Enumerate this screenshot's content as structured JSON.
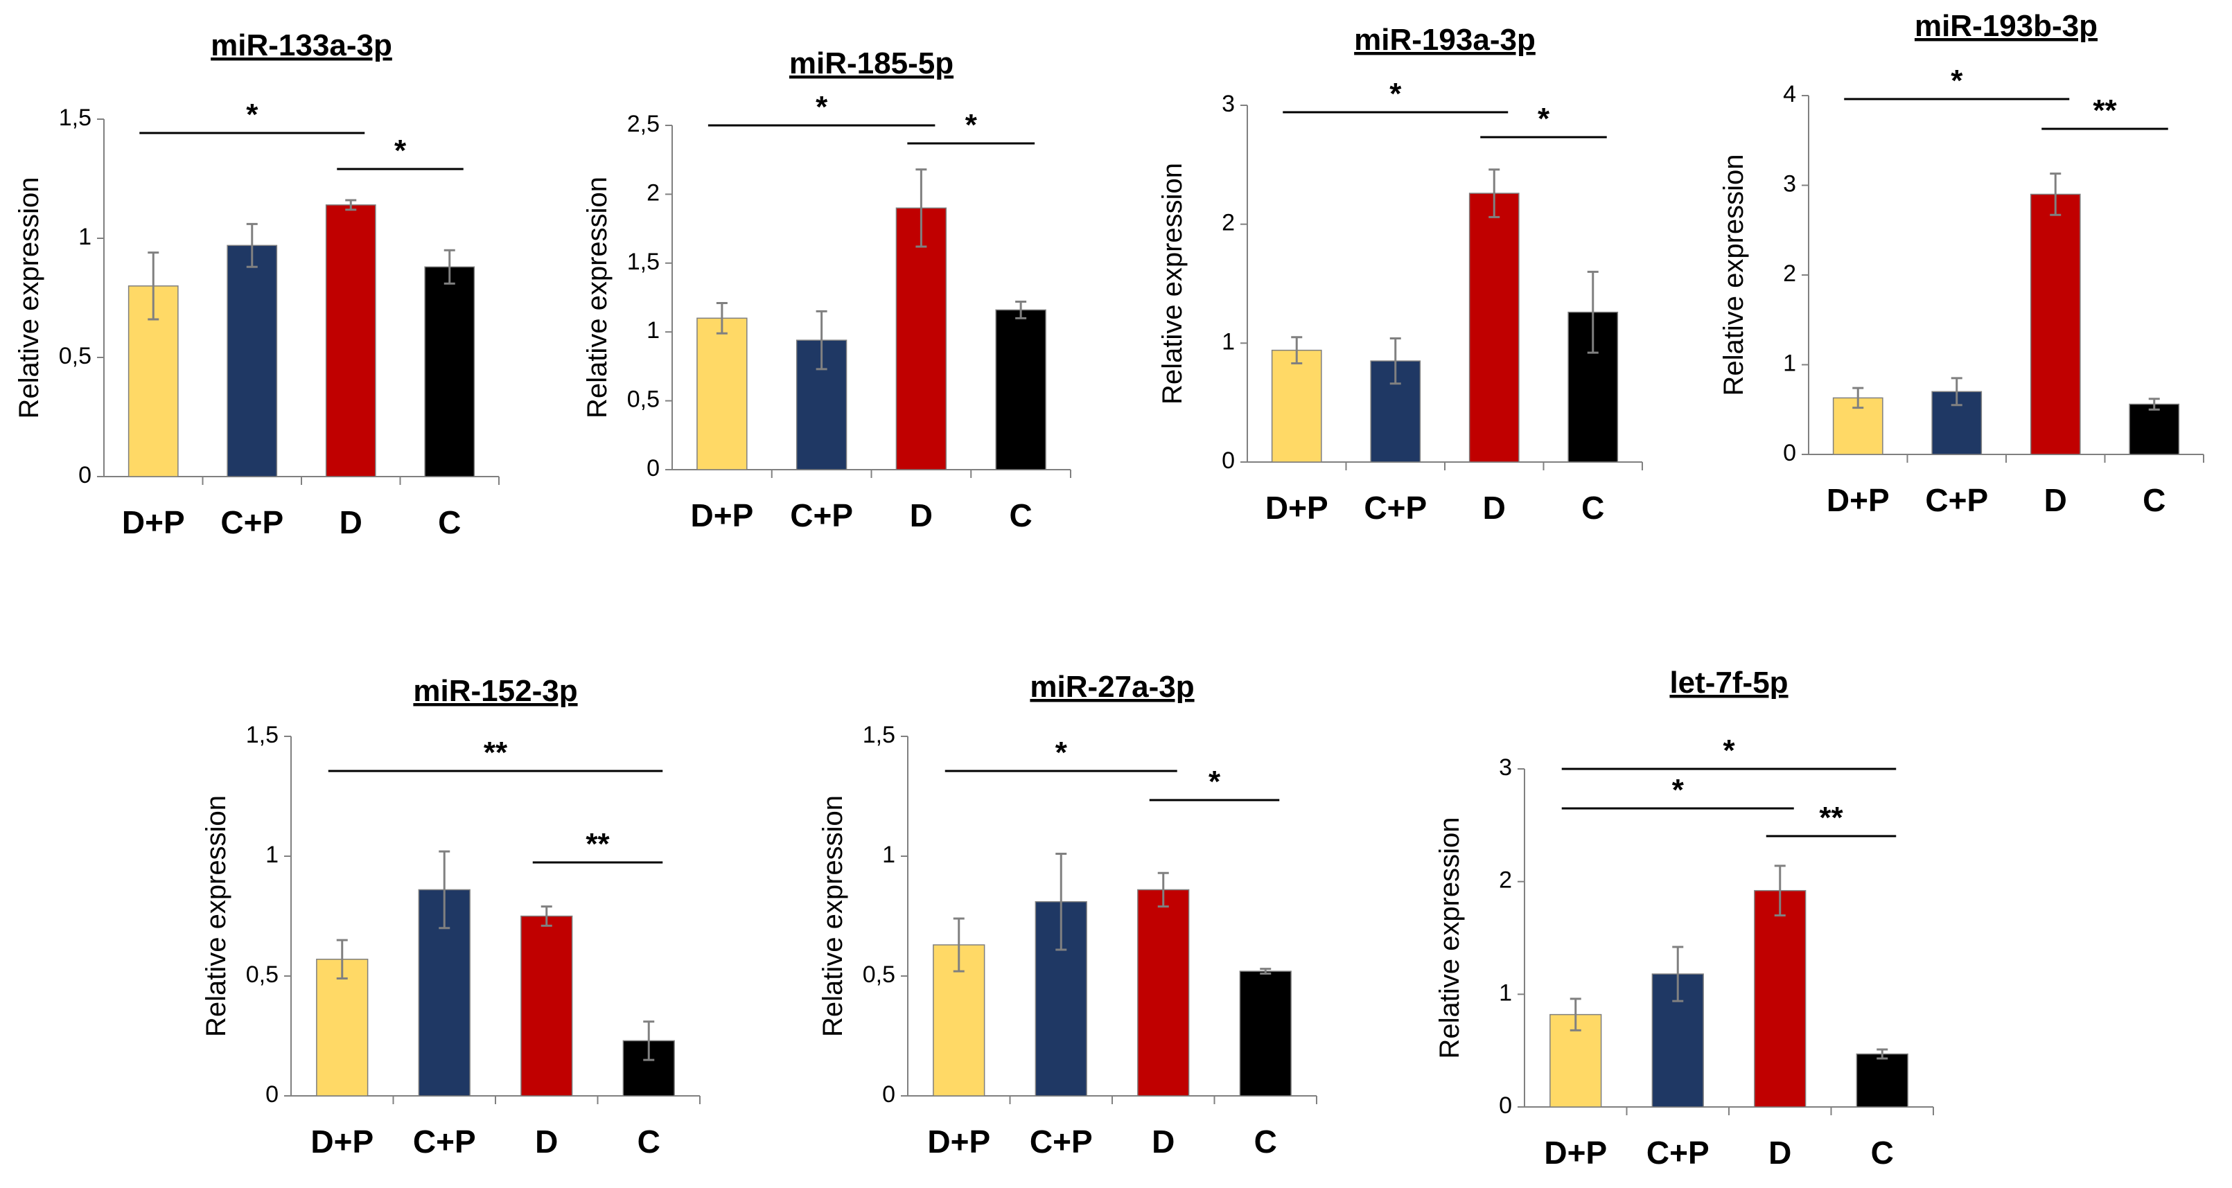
{
  "chart_data": [
    {
      "type": "bar",
      "title": "miR-133a-3p",
      "ylabel": "Relative expression",
      "xlabel": "",
      "ylim": [
        0,
        1.5
      ],
      "yticks": [
        "0",
        "0,5",
        "1",
        "1,5"
      ],
      "categories": [
        "D+P",
        "C+P",
        "D",
        "C"
      ],
      "values": [
        0.8,
        0.97,
        1.14,
        0.88
      ],
      "errors": [
        0.14,
        0.09,
        0.02,
        0.07
      ],
      "significance": [
        {
          "from": 0,
          "to": 2,
          "label": "*"
        },
        {
          "from": 2,
          "to": 3,
          "label": "*"
        }
      ]
    },
    {
      "type": "bar",
      "title": "miR-185-5p",
      "ylabel": "Relative expression",
      "xlabel": "",
      "ylim": [
        0,
        2.5
      ],
      "yticks": [
        "0",
        "0,5",
        "1",
        "1,5",
        "2",
        "2,5"
      ],
      "categories": [
        "D+P",
        "C+P",
        "D",
        "C"
      ],
      "values": [
        1.1,
        0.94,
        1.9,
        1.16
      ],
      "errors": [
        0.11,
        0.21,
        0.28,
        0.06
      ],
      "significance": [
        {
          "from": 0,
          "to": 2,
          "label": "*"
        },
        {
          "from": 2,
          "to": 3,
          "label": "*"
        }
      ]
    },
    {
      "type": "bar",
      "title": "miR-193a-3p",
      "ylabel": "Relative expression",
      "xlabel": "",
      "ylim": [
        0,
        3
      ],
      "yticks": [
        "0",
        "1",
        "2",
        "3"
      ],
      "categories": [
        "D+P",
        "C+P",
        "D",
        "C"
      ],
      "values": [
        0.94,
        0.85,
        2.26,
        1.26
      ],
      "errors": [
        0.11,
        0.19,
        0.2,
        0.34
      ],
      "significance": [
        {
          "from": 0,
          "to": 2,
          "label": "*"
        },
        {
          "from": 2,
          "to": 3,
          "label": "*"
        }
      ]
    },
    {
      "type": "bar",
      "title": "miR-193b-3p",
      "ylabel": "Relative expression",
      "xlabel": "",
      "ylim": [
        0,
        4
      ],
      "yticks": [
        "0",
        "1",
        "2",
        "3",
        "4"
      ],
      "categories": [
        "D+P",
        "C+P",
        "D",
        "C"
      ],
      "values": [
        0.63,
        0.7,
        2.9,
        0.56
      ],
      "errors": [
        0.11,
        0.15,
        0.23,
        0.06
      ],
      "significance": [
        {
          "from": 0,
          "to": 2,
          "label": "*"
        },
        {
          "from": 2,
          "to": 3,
          "label": "**"
        }
      ]
    },
    {
      "type": "bar",
      "title": "miR-152-3p",
      "ylabel": "Relative expression",
      "xlabel": "",
      "ylim": [
        0,
        1.5
      ],
      "yticks": [
        "0",
        "0,5",
        "1",
        "1,5"
      ],
      "categories": [
        "D+P",
        "C+P",
        "D",
        "C"
      ],
      "values": [
        0.57,
        0.86,
        0.75,
        0.23
      ],
      "errors": [
        0.08,
        0.16,
        0.04,
        0.08
      ],
      "significance": [
        {
          "from": 0,
          "to": 3,
          "label": "**"
        },
        {
          "from": 2,
          "to": 3,
          "label": "**"
        }
      ]
    },
    {
      "type": "bar",
      "title": "miR-27a-3p",
      "ylabel": "Relative expression",
      "xlabel": "",
      "ylim": [
        0,
        1.5
      ],
      "yticks": [
        "0",
        "0,5",
        "1",
        "1,5"
      ],
      "categories": [
        "D+P",
        "C+P",
        "D",
        "C"
      ],
      "values": [
        0.63,
        0.81,
        0.86,
        0.52
      ],
      "errors": [
        0.11,
        0.2,
        0.07,
        0.01
      ],
      "significance": [
        {
          "from": 0,
          "to": 2,
          "label": "*"
        },
        {
          "from": 2,
          "to": 3,
          "label": "*"
        }
      ]
    },
    {
      "type": "bar",
      "title": "let-7f-5p",
      "ylabel": "Relative expression",
      "xlabel": "",
      "ylim": [
        0,
        3
      ],
      "yticks": [
        "0",
        "1",
        "2",
        "3"
      ],
      "categories": [
        "D+P",
        "C+P",
        "D",
        "C"
      ],
      "values": [
        0.82,
        1.18,
        1.92,
        0.47
      ],
      "errors": [
        0.14,
        0.24,
        0.22,
        0.04
      ],
      "significance": [
        {
          "from": 0,
          "to": 3,
          "label": "*"
        },
        {
          "from": 0,
          "to": 2,
          "label": "*"
        },
        {
          "from": 2,
          "to": 3,
          "label": "**"
        }
      ]
    }
  ],
  "colors": {
    "D+P": "#ffd966",
    "C+P": "#1f3864",
    "D": "#c00000",
    "C": "#000000",
    "error_bar": "#808080",
    "axis": "#808080",
    "bar_outline": "#7f7f7f"
  }
}
